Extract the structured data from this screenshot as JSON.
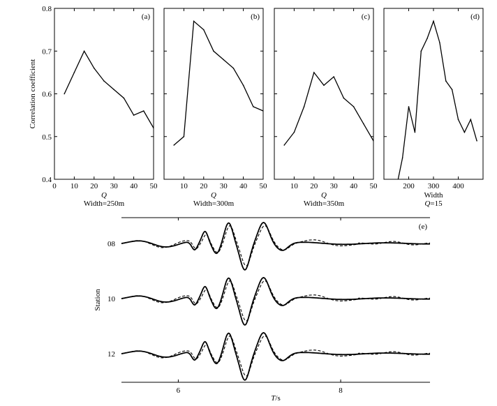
{
  "chart_data": [
    {
      "id": "a",
      "type": "line",
      "panel_label": "(a)",
      "x": [
        5,
        10,
        15,
        20,
        25,
        30,
        35,
        40,
        45,
        50
      ],
      "y": [
        0.6,
        0.65,
        0.7,
        0.66,
        0.63,
        0.61,
        0.59,
        0.55,
        0.56,
        0.52
      ],
      "xlim": [
        0,
        50
      ],
      "ylim": [
        0.4,
        0.8
      ],
      "xticks": [
        "0",
        "10",
        "20",
        "30",
        "40",
        "50"
      ],
      "yticks": [
        "0.4",
        "0.5",
        "0.6",
        "0.7",
        "0.8"
      ],
      "xlabel": "Q",
      "xlabel2": "Width=250m",
      "ylabel": "Correlation coefficient"
    },
    {
      "id": "b",
      "type": "line",
      "panel_label": "(b)",
      "x": [
        5,
        10,
        15,
        20,
        25,
        30,
        35,
        40,
        45,
        50
      ],
      "y": [
        0.48,
        0.5,
        0.77,
        0.75,
        0.7,
        0.68,
        0.66,
        0.62,
        0.57,
        0.56
      ],
      "xlim": [
        0,
        50
      ],
      "ylim": [
        0.4,
        0.8
      ],
      "xticks": [
        "10",
        "20",
        "30",
        "40",
        "50"
      ],
      "xlabel": "Q",
      "xlabel2": "Width=300m"
    },
    {
      "id": "c",
      "type": "line",
      "panel_label": "(c)",
      "x": [
        5,
        10,
        15,
        20,
        25,
        30,
        35,
        40,
        45,
        50
      ],
      "y": [
        0.48,
        0.51,
        0.57,
        0.65,
        0.62,
        0.64,
        0.59,
        0.57,
        0.53,
        0.49
      ],
      "xlim": [
        0,
        50
      ],
      "ylim": [
        0.4,
        0.8
      ],
      "xticks": [
        "10",
        "20",
        "30",
        "40",
        "50"
      ],
      "xlabel": "Q",
      "xlabel2": "Width=350m"
    },
    {
      "id": "d",
      "type": "line",
      "panel_label": "(d)",
      "x": [
        150,
        175,
        200,
        225,
        250,
        275,
        300,
        325,
        350,
        375,
        400,
        425,
        450,
        475
      ],
      "y": [
        0.38,
        0.45,
        0.57,
        0.51,
        0.7,
        0.73,
        0.77,
        0.72,
        0.63,
        0.61,
        0.54,
        0.51,
        0.54,
        0.49
      ],
      "xlim": [
        100,
        500
      ],
      "ylim": [
        0.4,
        0.8
      ],
      "xticks": [
        "200",
        "300",
        "400"
      ],
      "xlabel": "Width",
      "xlabel2": "Q=15"
    },
    {
      "id": "e",
      "type": "line",
      "panel_label": "(e)",
      "xlim": [
        5.3,
        9.1
      ],
      "xticks": [
        "6",
        "8"
      ],
      "xlabel": "T/s",
      "ylabel": "Station",
      "stations": [
        "08",
        "10",
        "12"
      ],
      "series_styles": [
        "solid",
        "dashed"
      ]
    }
  ],
  "colors": {
    "line": "#000000",
    "background": "#ffffff"
  }
}
